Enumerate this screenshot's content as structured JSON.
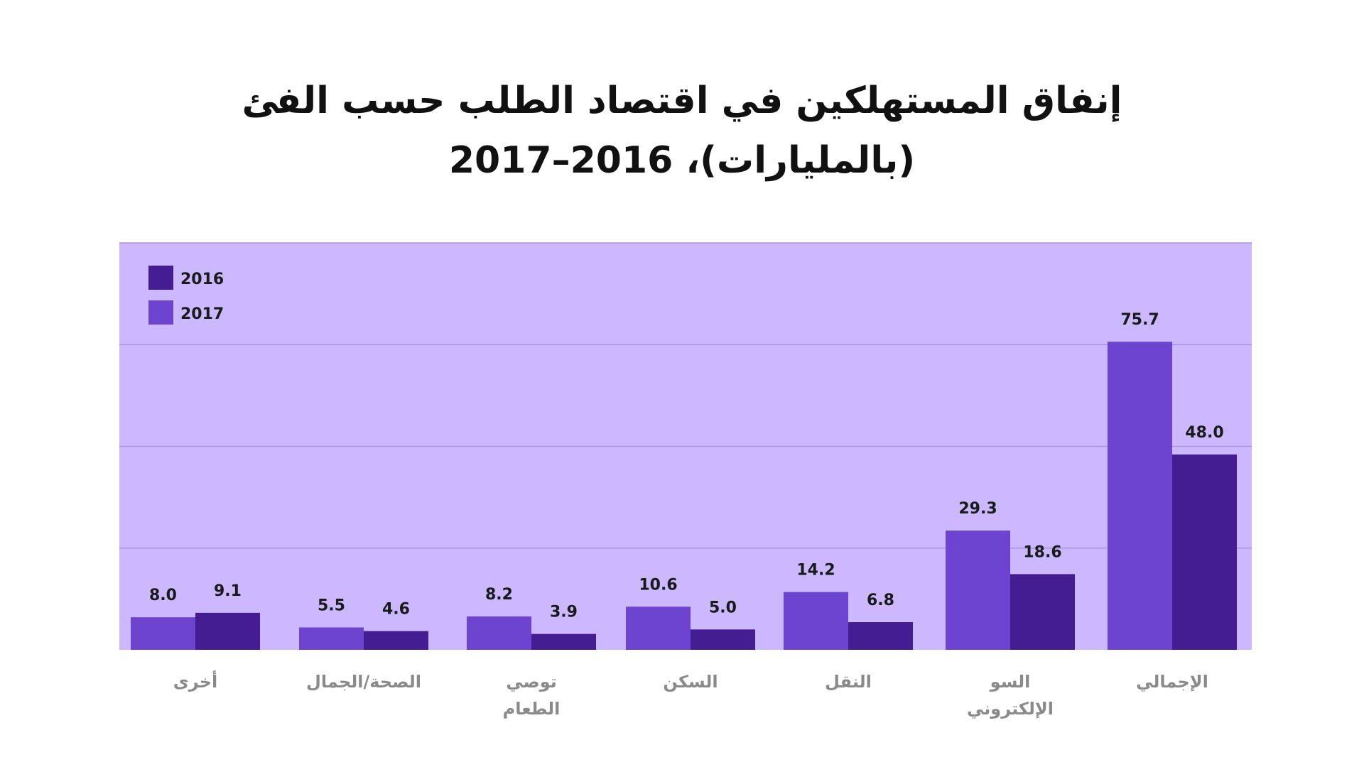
{
  "chart_data": {
    "type": "bar",
    "title_lines": [
      "إنفاق المستهلكين في اقتصاد الطلب حسب الفئ",
      "(بالمليارات)، 2016–2017"
    ],
    "categories": [
      [
        "أخرى"
      ],
      [
        "الصحة/الجمال"
      ],
      [
        "توصي",
        "الطعام"
      ],
      [
        "السكن"
      ],
      [
        "النقل"
      ],
      [
        "السو",
        "الإلكتروني"
      ],
      [
        "الإجمالي"
      ]
    ],
    "series": [
      {
        "name": "2017",
        "color": "#6d44d0",
        "values": [
          8.0,
          5.5,
          8.2,
          10.6,
          14.2,
          29.3,
          75.7
        ]
      },
      {
        "name": "2016",
        "color": "#431d91",
        "values": [
          9.1,
          4.6,
          3.9,
          5.0,
          6.8,
          18.6,
          48.0
        ]
      }
    ],
    "legend_order": [
      "2016",
      "2017"
    ],
    "legend_position": "top-left",
    "value_labels": [
      [
        "8.0",
        "5.5",
        "8.2",
        "10.6",
        "14.2",
        "29.3",
        "75.7"
      ],
      [
        "9.1",
        "4.6",
        "3.9",
        "5.0",
        "6.8",
        "18.6",
        "48.0"
      ]
    ],
    "ylim": [
      0,
      100
    ],
    "grid": true,
    "plot_background": "#cbb8fe",
    "grid_color": "#a993e3"
  }
}
